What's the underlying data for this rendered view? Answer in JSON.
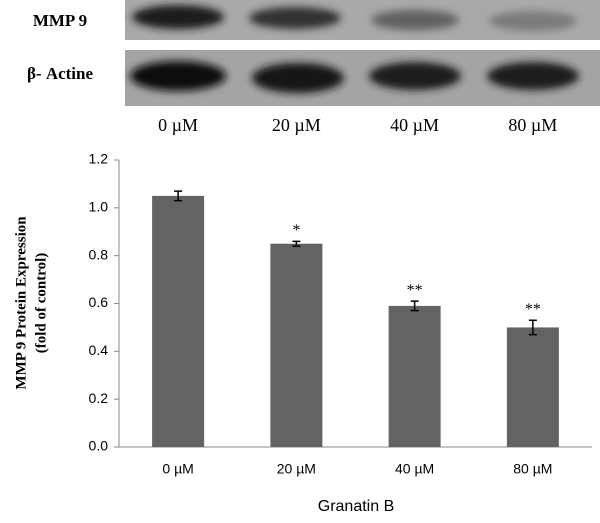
{
  "chart_data": {
    "type": "bar",
    "blot_rows": [
      "MMP 9",
      "β- Actine"
    ],
    "categories": [
      "0 µM",
      "20 µM",
      "40 µM",
      "80 µM"
    ],
    "values": [
      1.05,
      0.85,
      0.59,
      0.5
    ],
    "errors": [
      0.02,
      0.01,
      0.02,
      0.03
    ],
    "annotations": [
      null,
      "*",
      "**",
      "**"
    ],
    "ylabel": [
      "MMP 9 Protein Expression",
      "(fold of control)"
    ],
    "xlabel": "Granatin B",
    "color": "#636363",
    "ylim": [
      0,
      1.2
    ],
    "yticks": [
      {
        "value": 0,
        "label": "0.0"
      },
      0.2,
      0.4,
      0.6,
      0.8,
      {
        "value": 1,
        "label": "1.0"
      },
      1.2
    ]
  }
}
